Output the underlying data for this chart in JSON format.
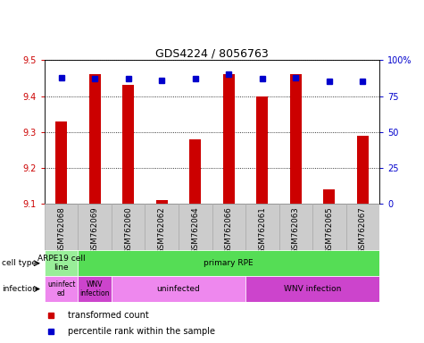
{
  "title": "GDS4224 / 8056763",
  "samples": [
    "GSM762068",
    "GSM762069",
    "GSM762060",
    "GSM762062",
    "GSM762064",
    "GSM762066",
    "GSM762061",
    "GSM762063",
    "GSM762065",
    "GSM762067"
  ],
  "transformed_counts": [
    9.33,
    9.46,
    9.43,
    9.11,
    9.28,
    9.46,
    9.4,
    9.46,
    9.14,
    9.29
  ],
  "percentile_ranks": [
    88,
    87,
    87,
    86,
    87,
    90,
    87,
    88,
    85,
    85
  ],
  "ylim": [
    9.1,
    9.5
  ],
  "yticks": [
    9.1,
    9.2,
    9.3,
    9.4,
    9.5
  ],
  "right_yticks": [
    0,
    25,
    50,
    75,
    100
  ],
  "bar_color": "#cc0000",
  "dot_color": "#0000cc",
  "grid_ticks": [
    9.2,
    9.3,
    9.4
  ],
  "cell_type_blocks": [
    {
      "label": "ARPE19 cell\nline",
      "start": 0,
      "end": 1,
      "color": "#99ee99"
    },
    {
      "label": "primary RPE",
      "start": 1,
      "end": 10,
      "color": "#55dd55"
    }
  ],
  "infection_blocks": [
    {
      "label": "uninfect\ned",
      "start": 0,
      "end": 1,
      "color": "#ee88ee"
    },
    {
      "label": "WNV\ninfection",
      "start": 1,
      "end": 2,
      "color": "#cc44cc"
    },
    {
      "label": "uninfected",
      "start": 2,
      "end": 6,
      "color": "#ee88ee"
    },
    {
      "label": "WNV infection",
      "start": 6,
      "end": 10,
      "color": "#cc44cc"
    }
  ],
  "annotation_cell_type": "cell type",
  "annotation_infection": "infection",
  "legend_items": [
    {
      "label": "transformed count",
      "color": "#cc0000"
    },
    {
      "label": "percentile rank within the sample",
      "color": "#0000cc"
    }
  ],
  "background_color": "#ffffff",
  "tick_label_bg": "#cccccc",
  "tick_label_border": "#aaaaaa"
}
